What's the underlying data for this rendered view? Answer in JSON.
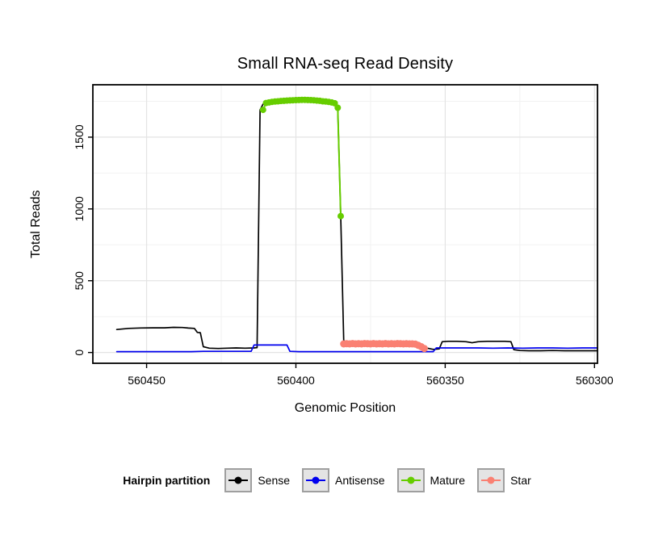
{
  "chart_data": {
    "type": "line",
    "title": "Small RNA-seq Read Density",
    "xlabel": "Genomic Position",
    "ylabel": "Total Reads",
    "xlim": [
      560468,
      560299
    ],
    "x_reversed": true,
    "ylim": [
      -75,
      1865
    ],
    "x_ticks": [
      560450,
      560400,
      560350,
      560300
    ],
    "x_minor_ticks": [
      560425,
      560375,
      560325
    ],
    "y_ticks": [
      0,
      500,
      1000,
      1500
    ],
    "y_minor_ticks": [
      250,
      750,
      1250,
      1750
    ],
    "grid": true,
    "panel": {
      "background": "#ffffff",
      "border_color": "#000000",
      "major_grid_color": "#e4e4e4",
      "minor_grid_color": "#f2f2f2"
    },
    "legend": {
      "title": "Hairpin partition",
      "position": "bottom"
    },
    "series": [
      {
        "name": "Sense",
        "color": "#000000",
        "style": "line",
        "line_width": 1.7,
        "marker_radius": 0,
        "points": [
          [
            560460,
            160
          ],
          [
            560456,
            168
          ],
          [
            560452,
            171
          ],
          [
            560448,
            172
          ],
          [
            560444,
            172
          ],
          [
            560441,
            175
          ],
          [
            560438,
            174
          ],
          [
            560436,
            170
          ],
          [
            560434,
            168
          ],
          [
            560433,
            140
          ],
          [
            560432,
            138
          ],
          [
            560431,
            40
          ],
          [
            560429,
            30
          ],
          [
            560426,
            28
          ],
          [
            560423,
            30
          ],
          [
            560420,
            32
          ],
          [
            560417,
            30
          ],
          [
            560414,
            32
          ],
          [
            560413,
            34
          ],
          [
            560412,
            1690
          ],
          [
            560411,
            1730
          ],
          [
            560410,
            1742
          ],
          [
            560408,
            1748
          ],
          [
            560406,
            1750
          ],
          [
            560404,
            1752
          ],
          [
            560402,
            1755
          ],
          [
            560400,
            1758
          ],
          [
            560398,
            1760
          ],
          [
            560396,
            1760
          ],
          [
            560394,
            1758
          ],
          [
            560392,
            1755
          ],
          [
            560390,
            1750
          ],
          [
            560388,
            1745
          ],
          [
            560387,
            1735
          ],
          [
            560386,
            1700
          ],
          [
            560385,
            950
          ],
          [
            560384,
            85
          ],
          [
            560383,
            65
          ],
          [
            560381,
            62
          ],
          [
            560378,
            60
          ],
          [
            560375,
            60
          ],
          [
            560372,
            62
          ],
          [
            560369,
            60
          ],
          [
            560366,
            60
          ],
          [
            560363,
            62
          ],
          [
            560360,
            60
          ],
          [
            560358,
            55
          ],
          [
            560356,
            30
          ],
          [
            560354,
            22
          ],
          [
            560352,
            25
          ],
          [
            560351,
            75
          ],
          [
            560349,
            78
          ],
          [
            560346,
            78
          ],
          [
            560343,
            75
          ],
          [
            560341,
            68
          ],
          [
            560339,
            75
          ],
          [
            560336,
            78
          ],
          [
            560333,
            78
          ],
          [
            560330,
            78
          ],
          [
            560328,
            75
          ],
          [
            560327,
            20
          ],
          [
            560325,
            14
          ],
          [
            560322,
            12
          ],
          [
            560318,
            12
          ],
          [
            560314,
            14
          ],
          [
            560310,
            12
          ],
          [
            560306,
            12
          ],
          [
            560302,
            12
          ],
          [
            560299,
            12
          ]
        ]
      },
      {
        "name": "Antisense",
        "color": "#0000ee",
        "style": "line",
        "line_width": 1.7,
        "marker_radius": 0,
        "points": [
          [
            560460,
            6
          ],
          [
            560455,
            6
          ],
          [
            560450,
            6
          ],
          [
            560445,
            6
          ],
          [
            560440,
            6
          ],
          [
            560435,
            6
          ],
          [
            560431,
            8
          ],
          [
            560427,
            8
          ],
          [
            560422,
            8
          ],
          [
            560418,
            8
          ],
          [
            560415,
            8
          ],
          [
            560414,
            52
          ],
          [
            560411,
            52
          ],
          [
            560408,
            52
          ],
          [
            560405,
            52
          ],
          [
            560403,
            52
          ],
          [
            560402,
            8
          ],
          [
            560399,
            6
          ],
          [
            560395,
            6
          ],
          [
            560390,
            6
          ],
          [
            560385,
            6
          ],
          [
            560380,
            6
          ],
          [
            560375,
            6
          ],
          [
            560370,
            6
          ],
          [
            560365,
            6
          ],
          [
            560360,
            6
          ],
          [
            560356,
            6
          ],
          [
            560354,
            6
          ],
          [
            560353,
            32
          ],
          [
            560349,
            32
          ],
          [
            560344,
            32
          ],
          [
            560339,
            32
          ],
          [
            560334,
            30
          ],
          [
            560329,
            32
          ],
          [
            560324,
            30
          ],
          [
            560319,
            32
          ],
          [
            560314,
            32
          ],
          [
            560309,
            30
          ],
          [
            560304,
            32
          ],
          [
            560299,
            32
          ]
        ]
      },
      {
        "name": "Mature",
        "color": "#66cd00",
        "style": "line+points",
        "line_width": 2,
        "marker_radius": 4,
        "points": [
          [
            560411,
            1690
          ],
          [
            560410,
            1738
          ],
          [
            560409,
            1742
          ],
          [
            560408,
            1746
          ],
          [
            560407,
            1748
          ],
          [
            560406,
            1750
          ],
          [
            560405,
            1752
          ],
          [
            560404,
            1753
          ],
          [
            560403,
            1755
          ],
          [
            560402,
            1756
          ],
          [
            560401,
            1757
          ],
          [
            560400,
            1758
          ],
          [
            560399,
            1759
          ],
          [
            560398,
            1760
          ],
          [
            560397,
            1760
          ],
          [
            560396,
            1759
          ],
          [
            560395,
            1758
          ],
          [
            560394,
            1757
          ],
          [
            560393,
            1755
          ],
          [
            560392,
            1753
          ],
          [
            560391,
            1750
          ],
          [
            560390,
            1748
          ],
          [
            560389,
            1745
          ],
          [
            560388,
            1742
          ],
          [
            560387,
            1736
          ],
          [
            560386,
            1705
          ],
          [
            560385,
            950
          ]
        ]
      },
      {
        "name": "Star",
        "color": "#fa8072",
        "style": "line+points",
        "line_width": 2.5,
        "marker_radius": 4.5,
        "points": [
          [
            560384,
            60
          ],
          [
            560383,
            61
          ],
          [
            560382,
            60
          ],
          [
            560381,
            62
          ],
          [
            560380,
            60
          ],
          [
            560379,
            61
          ],
          [
            560378,
            60
          ],
          [
            560377,
            62
          ],
          [
            560376,
            61
          ],
          [
            560375,
            60
          ],
          [
            560374,
            62
          ],
          [
            560373,
            60
          ],
          [
            560372,
            61
          ],
          [
            560371,
            60
          ],
          [
            560370,
            62
          ],
          [
            560369,
            60
          ],
          [
            560368,
            61
          ],
          [
            560367,
            60
          ],
          [
            560366,
            62
          ],
          [
            560365,
            61
          ],
          [
            560364,
            60
          ],
          [
            560363,
            61
          ],
          [
            560362,
            60
          ],
          [
            560361,
            60
          ],
          [
            560360,
            58
          ],
          [
            560359,
            50
          ],
          [
            560358,
            40
          ],
          [
            560357,
            28
          ]
        ]
      }
    ]
  }
}
